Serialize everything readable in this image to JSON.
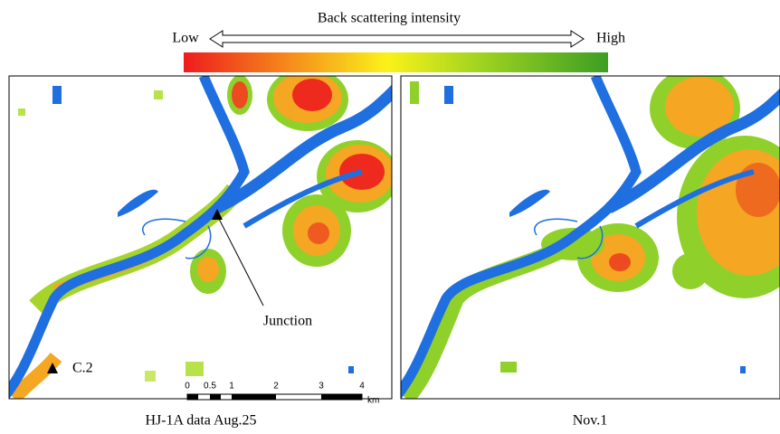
{
  "legend": {
    "title": "Back scattering intensity",
    "low": "Low",
    "high": "High"
  },
  "panels": [
    {
      "caption": "HJ-1A data Aug.25",
      "annotations": [
        "Junction",
        "C.2"
      ]
    },
    {
      "caption": "Nov.1"
    }
  ],
  "scale_bar": {
    "ticks": [
      "0",
      "0.5",
      "1",
      "2",
      "3",
      "4"
    ],
    "unit": "km"
  }
}
